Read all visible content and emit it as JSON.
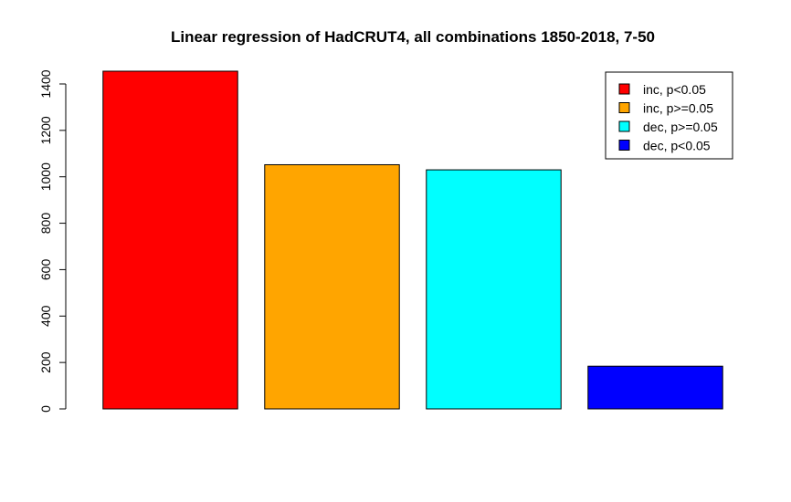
{
  "chart_data": {
    "type": "bar",
    "title": "Linear regression of HadCRUT4, all combinations 1850-2018, 7-50",
    "xlabel": "",
    "ylabel": "",
    "categories": [
      "inc, p<0.05",
      "inc, p>=0.05",
      "dec, p>=0.05",
      "dec, p<0.05"
    ],
    "values": [
      1455,
      1052,
      1030,
      184
    ],
    "colors": [
      "#ff0000",
      "#ffa500",
      "#00ffff",
      "#0000ff"
    ],
    "ylim": [
      0,
      1455
    ],
    "yticks": [
      0,
      200,
      400,
      600,
      800,
      1000,
      1200,
      1400
    ],
    "legend": {
      "placement": "top-right",
      "entries": [
        {
          "label": "inc, p<0.05",
          "color": "#ff0000"
        },
        {
          "label": "inc, p>=0.05",
          "color": "#ffa500"
        },
        {
          "label": "dec, p>=0.05",
          "color": "#00ffff"
        },
        {
          "label": "dec, p<0.05",
          "color": "#0000ff"
        }
      ]
    },
    "grid": false
  }
}
